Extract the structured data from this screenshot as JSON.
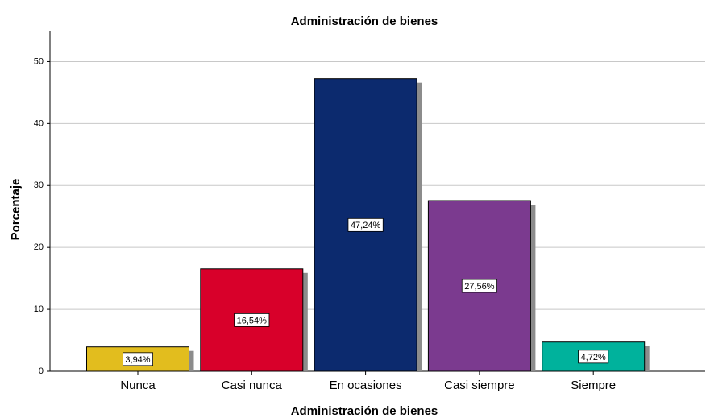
{
  "chart_data": {
    "type": "bar",
    "title": "Administración de bienes",
    "x_label": "Administración de bienes",
    "y_label": "Porcentaje",
    "categories": [
      "Nunca",
      "Casi nunca",
      "En ocasiones",
      "Casi siempre",
      "Siempre"
    ],
    "values": [
      3.94,
      16.54,
      47.24,
      27.56,
      4.72
    ],
    "value_labels": [
      "3,94%",
      "16,54%",
      "47,24%",
      "27,56%",
      "4,72%"
    ],
    "colors": [
      "#e2bd1e",
      "#d8002a",
      "#0c2a6e",
      "#7b3a8f",
      "#00b29c"
    ],
    "ylim": [
      0,
      55
    ],
    "yticks": [
      0,
      10,
      20,
      30,
      40,
      50
    ],
    "grid": true
  }
}
